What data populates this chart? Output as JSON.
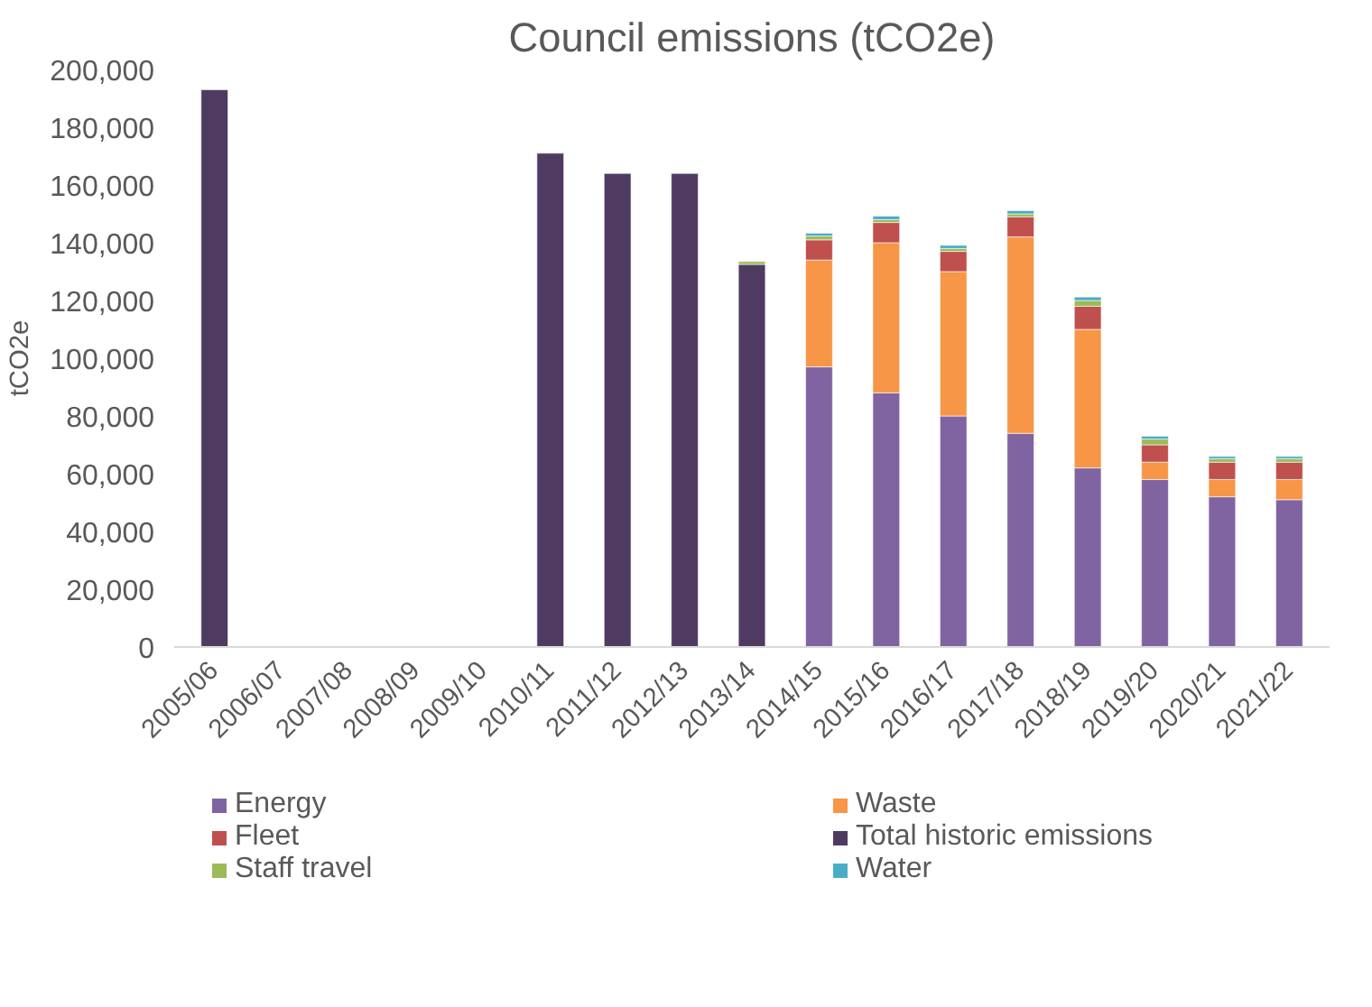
{
  "chart_data": {
    "type": "bar",
    "title": "Council emissions (tCO2e)",
    "ylabel": "tCO2e",
    "stacked": true,
    "categories": [
      "2005/06",
      "2006/07",
      "2007/08",
      "2008/09",
      "2009/10",
      "2010/11",
      "2011/12",
      "2012/13",
      "2013/14",
      "2014/15",
      "2015/16",
      "2016/17",
      "2017/18",
      "2018/19",
      "2019/20",
      "2020/21",
      "2021/22"
    ],
    "series": [
      {
        "name": "Energy",
        "color": "#8064a2",
        "values": [
          null,
          null,
          null,
          null,
          null,
          null,
          null,
          null,
          null,
          97000,
          88000,
          80000,
          74000,
          62000,
          58000,
          52000,
          51000
        ]
      },
      {
        "name": "Waste",
        "color": "#f79646",
        "values": [
          null,
          null,
          null,
          null,
          null,
          null,
          null,
          null,
          null,
          37000,
          52000,
          50000,
          68000,
          48000,
          6000,
          6000,
          7000
        ]
      },
      {
        "name": "Fleet",
        "color": "#c0504d",
        "values": [
          null,
          null,
          null,
          null,
          null,
          null,
          null,
          null,
          null,
          7000,
          7000,
          7000,
          7000,
          8000,
          6000,
          6000,
          6000
        ]
      },
      {
        "name": "Total historic emissions",
        "color": "#4f3b62",
        "values": [
          193000,
          null,
          null,
          null,
          null,
          171000,
          164000,
          164000,
          132500,
          null,
          null,
          null,
          null,
          null,
          null,
          null,
          null
        ]
      },
      {
        "name": "Staff travel",
        "color": "#9bbb59",
        "values": [
          null,
          null,
          null,
          null,
          null,
          null,
          null,
          null,
          1000,
          1300,
          1000,
          1000,
          1000,
          2000,
          2000,
          1200,
          1200
        ]
      },
      {
        "name": "Water",
        "color": "#4bacc6",
        "values": [
          null,
          null,
          null,
          null,
          null,
          null,
          null,
          null,
          null,
          1000,
          1200,
          1100,
          1100,
          1200,
          1000,
          800,
          800
        ]
      }
    ],
    "ylim": [
      0,
      200000
    ],
    "yticks": [
      {
        "value": 0,
        "label": "0"
      },
      {
        "value": 20000,
        "label": "20,000"
      },
      {
        "value": 40000,
        "label": "40,000"
      },
      {
        "value": 60000,
        "label": "60,000"
      },
      {
        "value": 80000,
        "label": "80,000"
      },
      {
        "value": 100000,
        "label": "100,000"
      },
      {
        "value": 120000,
        "label": "120,000"
      },
      {
        "value": 140000,
        "label": "140,000"
      },
      {
        "value": 160000,
        "label": "160,000"
      },
      {
        "value": 180000,
        "label": "180,000"
      },
      {
        "value": 200000,
        "label": "200,000"
      }
    ],
    "grid": false,
    "legend": "bottom"
  }
}
